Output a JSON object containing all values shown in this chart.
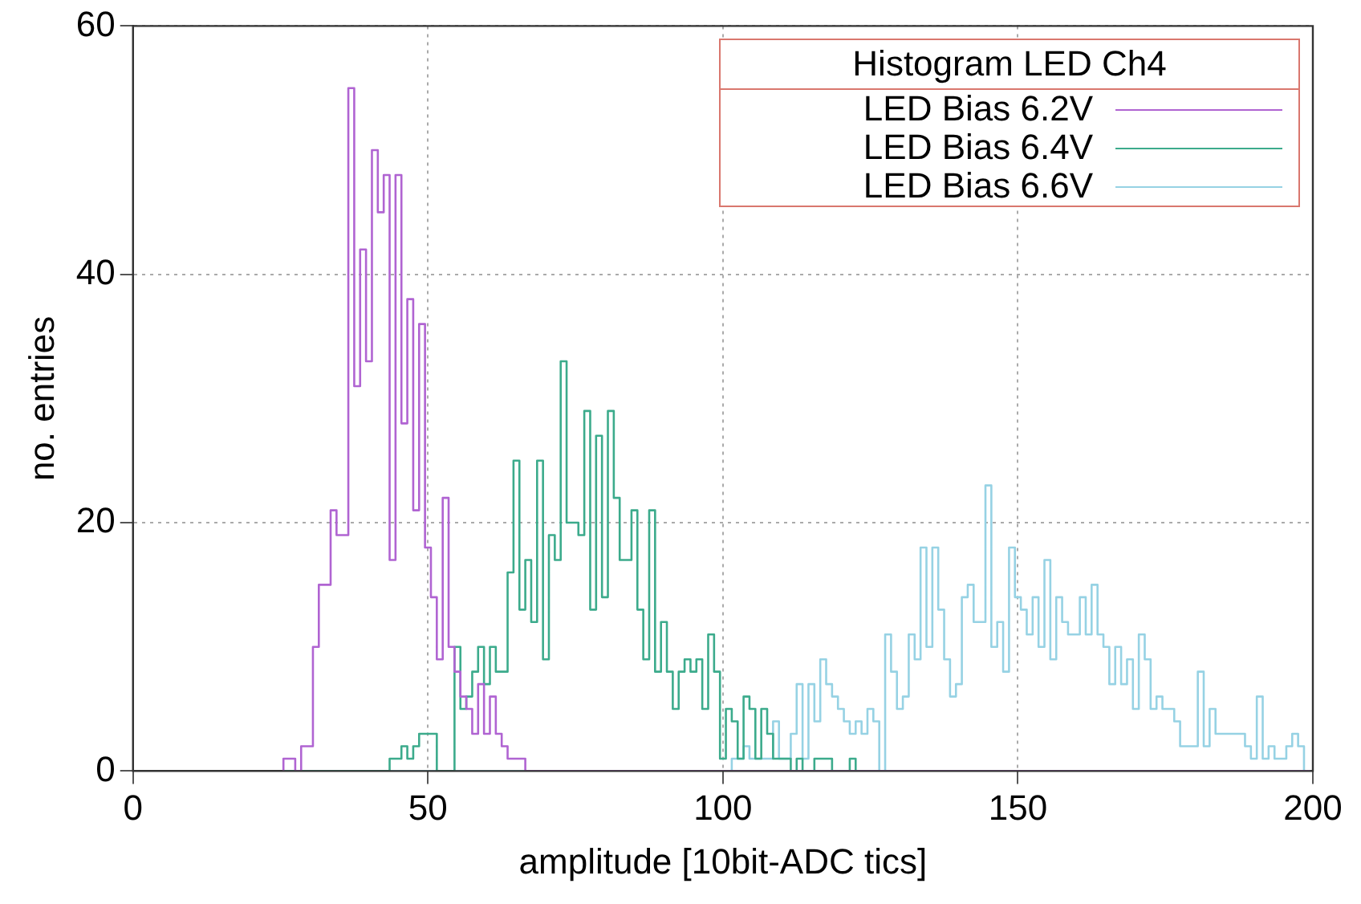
{
  "chart_data": {
    "type": "histogram",
    "xlabel": "amplitude [10bit-ADC tics]",
    "ylabel": "no. entries",
    "legend_title": "Histogram LED Ch4",
    "legend": "top right",
    "grid": true,
    "xlim": [
      0,
      200
    ],
    "xticks": [
      0,
      50,
      100,
      150,
      200
    ],
    "ylim": [
      0,
      60
    ],
    "yticks": [
      0,
      20,
      40,
      60
    ],
    "bins": [
      25.5,
      26.5,
      27.5,
      28.5,
      29.5,
      30.5,
      31.5,
      32.5,
      33.5,
      34.5,
      35.5,
      36.5,
      37.5,
      38.5,
      39.5,
      40.5,
      41.5,
      42.5,
      43.5,
      44.5,
      45.5,
      46.5,
      47.5,
      48.5,
      49.5,
      50.5,
      51.5,
      52.5,
      53.5,
      54.5,
      55.5,
      56.5,
      57.5,
      58.5,
      59.5,
      60.5,
      61.5,
      62.5,
      63.5,
      64.5,
      65.5,
      66.5,
      67.5,
      68.5,
      69.5,
      70.5,
      71.5,
      72.5,
      73.5,
      74.5,
      75.5,
      76.5,
      77.5,
      78.5,
      79.5,
      80.5,
      81.5,
      82.5,
      83.5,
      84.5,
      85.5,
      86.5,
      87.5,
      88.5,
      89.5,
      90.5,
      91.5,
      92.5,
      93.5,
      94.5,
      95.5,
      96.5,
      97.5,
      98.5,
      99.5,
      100.5,
      101.5,
      102.5,
      103.5,
      104.5,
      105.5,
      106.5,
      107.5,
      108.5,
      109.5,
      110.5,
      111.5,
      112.5,
      113.5,
      114.5,
      115.5,
      116.5,
      117.5,
      118.5,
      119.5,
      120.5,
      121.5,
      122.5,
      123.5,
      124.5,
      125.5,
      126.5,
      127.5,
      128.5,
      129.5,
      130.5,
      131.5,
      132.5,
      133.5,
      134.5,
      135.5,
      136.5,
      137.5,
      138.5,
      139.5,
      140.5,
      141.5,
      142.5,
      143.5,
      144.5,
      145.5,
      146.5,
      147.5,
      148.5,
      149.5,
      150.5,
      151.5,
      152.5,
      153.5,
      154.5,
      155.5,
      156.5,
      157.5,
      158.5,
      159.5,
      160.5,
      161.5,
      162.5,
      163.5,
      164.5,
      165.5,
      166.5,
      167.5,
      168.5,
      169.5,
      170.5,
      171.5,
      172.5,
      173.5,
      174.5,
      175.5,
      176.5,
      177.5,
      178.5,
      179.5,
      180.5,
      181.5,
      182.5,
      183.5,
      184.5,
      185.5,
      186.5,
      187.5,
      188.5,
      189.5,
      190.5,
      191.5,
      192.5,
      193.5,
      194.5,
      195.5,
      196.5,
      197.5,
      198.5,
      199.5
    ],
    "series": [
      {
        "name": "LED Bias 6.2V",
        "color": "#b064d2",
        "values": [
          1,
          1,
          0,
          2,
          2,
          10,
          15,
          15,
          21,
          19,
          19,
          55,
          31,
          42,
          33,
          50,
          45,
          48,
          17,
          48,
          28,
          38,
          21,
          36,
          18,
          14,
          9,
          22,
          10,
          8,
          6,
          5,
          3,
          7,
          3,
          6,
          3,
          2,
          1,
          1,
          1,
          0,
          0,
          0,
          0,
          0,
          0,
          0,
          0,
          0,
          0,
          0,
          0,
          0,
          0,
          0,
          0,
          0,
          0,
          0,
          0,
          0,
          0,
          0,
          0,
          0,
          0,
          0,
          0,
          0,
          0,
          0,
          0,
          0,
          0,
          0,
          0,
          0,
          0,
          0,
          0,
          0,
          0,
          0,
          0,
          0,
          0,
          0,
          0,
          0,
          0,
          0,
          0,
          0,
          0,
          0,
          0,
          0,
          0,
          0,
          0,
          0,
          0,
          0,
          0,
          0,
          0,
          0,
          0,
          0,
          0,
          0,
          0,
          0,
          0,
          0,
          0,
          0,
          0,
          0,
          0,
          0,
          0,
          0,
          0,
          0,
          0,
          0,
          0,
          0,
          0,
          0,
          0,
          0,
          0,
          0,
          0,
          0,
          0,
          0,
          0,
          0,
          0,
          0,
          0,
          0,
          0,
          0,
          0,
          0,
          0,
          0,
          0,
          0,
          0,
          0,
          0,
          0,
          0,
          0,
          0,
          0,
          0,
          0,
          0,
          0,
          0,
          0,
          0,
          0,
          0,
          0,
          0,
          0
        ]
      },
      {
        "name": "LED Bias 6.4V",
        "color": "#3cab8c",
        "values": [
          0,
          0,
          0,
          0,
          0,
          0,
          0,
          0,
          0,
          0,
          0,
          0,
          0,
          0,
          0,
          0,
          0,
          0,
          1,
          1,
          2,
          1,
          2,
          3,
          3,
          3,
          0,
          0,
          0,
          10,
          5,
          6,
          8,
          10,
          7,
          10,
          8,
          8,
          16,
          25,
          13,
          17,
          12,
          25,
          9,
          19,
          17,
          33,
          20,
          20,
          19,
          29,
          13,
          27,
          14,
          29,
          22,
          17,
          17,
          21,
          13,
          9,
          21,
          8,
          12,
          8,
          5,
          8,
          9,
          8,
          9,
          5,
          11,
          8,
          1,
          5,
          4,
          1,
          6,
          5,
          1,
          5,
          3,
          1,
          1,
          1,
          0,
          1,
          0,
          0,
          1,
          1,
          1,
          0,
          0,
          0,
          1,
          0,
          0,
          0,
          0,
          0,
          0,
          0,
          0,
          0,
          0,
          0,
          0,
          0,
          0,
          0,
          0,
          0,
          0,
          0,
          0,
          0,
          0,
          0,
          0,
          0,
          0,
          0,
          0,
          0,
          0,
          0,
          0,
          0,
          0,
          0,
          0,
          0,
          0,
          0,
          0,
          0,
          0,
          0,
          0,
          0,
          0,
          0,
          0,
          0,
          0,
          0,
          0,
          0,
          0,
          0,
          0,
          0,
          0,
          0,
          0,
          0,
          0,
          0,
          0,
          0,
          0,
          0,
          0,
          0,
          0,
          0,
          0,
          0,
          0,
          0,
          0,
          0
        ]
      },
      {
        "name": "LED Bias 6.6V",
        "color": "#96d2e4",
        "values": [
          0,
          0,
          0,
          0,
          0,
          0,
          0,
          0,
          0,
          0,
          0,
          0,
          0,
          0,
          0,
          0,
          0,
          0,
          0,
          0,
          0,
          0,
          0,
          0,
          0,
          0,
          0,
          0,
          0,
          0,
          0,
          0,
          0,
          0,
          0,
          0,
          0,
          0,
          0,
          0,
          0,
          0,
          0,
          0,
          0,
          0,
          0,
          0,
          0,
          0,
          0,
          0,
          0,
          0,
          0,
          0,
          0,
          0,
          0,
          0,
          0,
          0,
          0,
          0,
          0,
          0,
          0,
          0,
          0,
          0,
          0,
          0,
          0,
          0,
          0,
          0,
          1,
          1,
          2,
          1,
          1,
          1,
          1,
          4,
          1,
          1,
          3,
          7,
          1,
          7,
          4,
          9,
          7,
          6,
          5,
          4,
          3,
          4,
          3,
          5,
          4,
          0,
          11,
          8,
          5,
          6,
          11,
          9,
          18,
          10,
          18,
          13,
          9,
          6,
          7,
          14,
          15,
          12,
          12,
          23,
          10,
          12,
          8,
          18,
          14,
          13,
          11,
          14,
          10,
          17,
          9,
          14,
          12,
          11,
          11,
          14,
          11,
          15,
          11,
          10,
          7,
          10,
          7,
          9,
          5,
          11,
          9,
          5,
          6,
          5,
          5,
          4,
          2,
          2,
          2,
          8,
          2,
          5,
          3,
          3,
          3,
          3,
          3,
          2,
          1,
          6,
          1,
          2,
          1,
          1,
          2,
          3,
          2,
          0
        ]
      }
    ]
  }
}
